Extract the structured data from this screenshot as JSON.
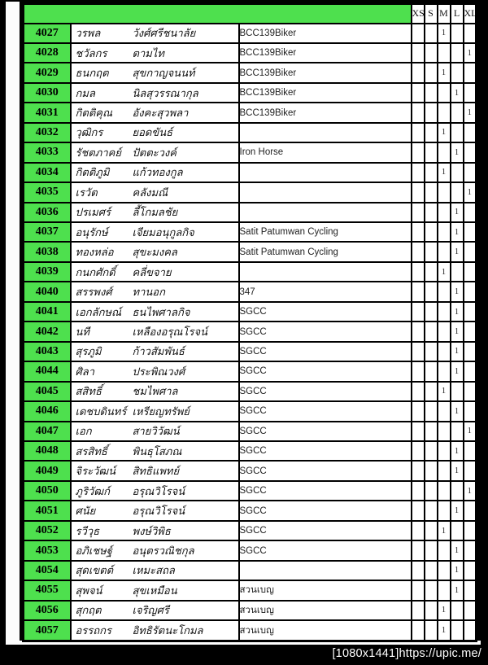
{
  "header": {
    "size_columns": [
      "XS",
      "S",
      "M",
      "L",
      "XL"
    ]
  },
  "rows": [
    {
      "id": "4027",
      "first_name": "วรพล",
      "last_name": "วังศ์ศรีชนาลัย",
      "team": "BCC139Biker",
      "sizes": [
        "",
        "",
        "1",
        "",
        ""
      ]
    },
    {
      "id": "4028",
      "first_name": "ชวัลกร",
      "last_name": "ตามไท",
      "team": "BCC139Biker",
      "sizes": [
        "",
        "",
        "",
        "",
        "1"
      ]
    },
    {
      "id": "4029",
      "first_name": "ธนกฤต",
      "last_name": "สุขกาญจนนท์",
      "team": "BCC139Biker",
      "sizes": [
        "",
        "",
        "1",
        "",
        ""
      ]
    },
    {
      "id": "4030",
      "first_name": "กมล",
      "last_name": "นิลสุวรรณากุล",
      "team": "BCC139Biker",
      "sizes": [
        "",
        "",
        "",
        "1",
        ""
      ]
    },
    {
      "id": "4031",
      "first_name": "กิตติคุณ",
      "last_name": "อังคะสุวพลา",
      "team": "BCC139Biker",
      "sizes": [
        "",
        "",
        "",
        "",
        "1"
      ]
    },
    {
      "id": "4032",
      "first_name": "วุฒิกร",
      "last_name": "ยอดขันธ์",
      "team": "",
      "sizes": [
        "",
        "",
        "1",
        "",
        ""
      ]
    },
    {
      "id": "4033",
      "first_name": "รัชตภาคย์",
      "last_name": "ปัตตะวงค์",
      "team": "Iron Horse",
      "sizes": [
        "",
        "",
        "",
        "1",
        ""
      ]
    },
    {
      "id": "4034",
      "first_name": "กิตติภูมิ",
      "last_name": "แก้วทองกูล",
      "team": "",
      "sizes": [
        "",
        "",
        "1",
        "",
        ""
      ]
    },
    {
      "id": "4035",
      "first_name": "เรวัต",
      "last_name": "คลังมณี",
      "team": "",
      "sizes": [
        "",
        "",
        "",
        "",
        "1"
      ]
    },
    {
      "id": "4036",
      "first_name": "ปรเมศร์",
      "last_name": "ลี้โกมลชัย",
      "team": "",
      "sizes": [
        "",
        "",
        "",
        "1",
        ""
      ]
    },
    {
      "id": "4037",
      "first_name": "อนุรักษ์",
      "last_name": "เจียมอนุกูลกิจ",
      "team": "Satit Patumwan Cycling",
      "sizes": [
        "",
        "",
        "",
        "1",
        ""
      ]
    },
    {
      "id": "4038",
      "first_name": "ทองหล่อ",
      "last_name": "สุขะมงคล",
      "team": "Satit Patumwan Cycling",
      "sizes": [
        "",
        "",
        "",
        "1",
        ""
      ]
    },
    {
      "id": "4039",
      "first_name": "กนกศักดิ์",
      "last_name": "คลี่ขจาย",
      "team": "",
      "sizes": [
        "",
        "",
        "1",
        "",
        ""
      ]
    },
    {
      "id": "4040",
      "first_name": "สรรพงศ์",
      "last_name": "ทานอก",
      "team": "347",
      "sizes": [
        "",
        "",
        "",
        "1",
        ""
      ]
    },
    {
      "id": "4041",
      "first_name": "เอกลักษณ์",
      "last_name": "ธนไพศาลกิจ",
      "team": "SGCC",
      "sizes": [
        "",
        "",
        "",
        "1",
        ""
      ]
    },
    {
      "id": "4042",
      "first_name": "นที",
      "last_name": "เหลืองอรุณโรจน์",
      "team": "SGCC",
      "sizes": [
        "",
        "",
        "",
        "1",
        ""
      ]
    },
    {
      "id": "4043",
      "first_name": "สุรภูมิ",
      "last_name": "ก้าวสัมพันธ์",
      "team": "SGCC",
      "sizes": [
        "",
        "",
        "",
        "1",
        ""
      ]
    },
    {
      "id": "4044",
      "first_name": "ศิลา",
      "last_name": "ประพิณวงศ์",
      "team": "SGCC",
      "sizes": [
        "",
        "",
        "",
        "1",
        ""
      ]
    },
    {
      "id": "4045",
      "first_name": "สสิทธิ์",
      "last_name": "ชมไพศาล",
      "team": "SGCC",
      "sizes": [
        "",
        "",
        "1",
        "",
        ""
      ]
    },
    {
      "id": "4046",
      "first_name": "เดชบดินทร์",
      "last_name": "เหรียญทรัพย์",
      "team": "SGCC",
      "sizes": [
        "",
        "",
        "",
        "1",
        ""
      ]
    },
    {
      "id": "4047",
      "first_name": "เอก",
      "last_name": "สายวิวัฒน์",
      "team": "SGCC",
      "sizes": [
        "",
        "",
        "",
        "",
        "1"
      ]
    },
    {
      "id": "4048",
      "first_name": "สรสิทธิ์",
      "last_name": "พินธุโสภณ",
      "team": "SGCC",
      "sizes": [
        "",
        "",
        "",
        "1",
        ""
      ]
    },
    {
      "id": "4049",
      "first_name": "จิระวัฒน์",
      "last_name": "สิทธิแพทย์",
      "team": "SGCC",
      "sizes": [
        "",
        "",
        "",
        "1",
        ""
      ]
    },
    {
      "id": "4050",
      "first_name": "ภูริวัฒก์",
      "last_name": "อรุณวิโรจน์",
      "team": "SGCC",
      "sizes": [
        "",
        "",
        "",
        "",
        "1"
      ]
    },
    {
      "id": "4051",
      "first_name": "ศนัย",
      "last_name": "อรุณวิโรจน์",
      "team": "SGCC",
      "sizes": [
        "",
        "",
        "",
        "1",
        ""
      ]
    },
    {
      "id": "4052",
      "first_name": "รวีวุธ",
      "last_name": "พงษ์วิพิธ",
      "team": "SGCC",
      "sizes": [
        "",
        "",
        "1",
        "",
        ""
      ]
    },
    {
      "id": "4053",
      "first_name": "อภิเชษฐ์",
      "last_name": "อนุตรวณิชกุล",
      "team": "SGCC",
      "sizes": [
        "",
        "",
        "",
        "1",
        ""
      ]
    },
    {
      "id": "4054",
      "first_name": "สุดเขตต์",
      "last_name": "เหมะสถล",
      "team": "",
      "sizes": [
        "",
        "",
        "",
        "1",
        ""
      ]
    },
    {
      "id": "4055",
      "first_name": "สุพจน์",
      "last_name": "สุขเหมือน",
      "team": "สวนเบญ",
      "sizes": [
        "",
        "",
        "",
        "1",
        ""
      ]
    },
    {
      "id": "4056",
      "first_name": "สุกฤต",
      "last_name": "เจริญศรี",
      "team": "สวนเบญ",
      "sizes": [
        "",
        "",
        "1",
        "",
        ""
      ]
    },
    {
      "id": "4057",
      "first_name": "อรรถกร",
      "last_name": "อิทธิรัตนะโกมล",
      "team": "สวนเบญ",
      "sizes": [
        "",
        "",
        "1",
        "",
        ""
      ]
    }
  ],
  "footer": {
    "caption": "[1080x1441]https://upic.me/"
  },
  "colors": {
    "header_green": "#4EE04E",
    "grid_line": "#000000",
    "cell_background": "#FFFFFF",
    "viewer_background": "#000000",
    "caption_text": "#FFFFFF"
  }
}
